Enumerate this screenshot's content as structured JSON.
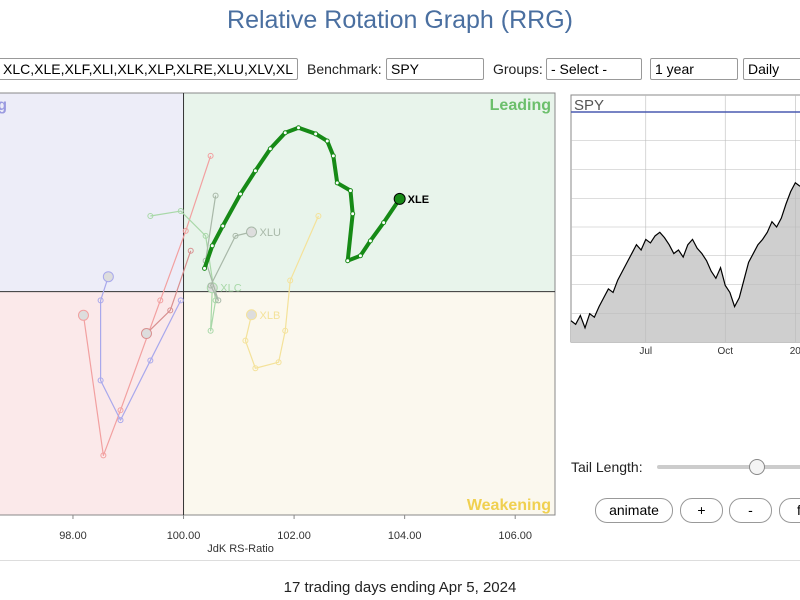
{
  "page": {
    "title": "Relative Rotation Graph (RRG)",
    "symbols": "XLC,XLE,XLF,XLI,XLK,XLP,XLRE,XLU,XLV,XL",
    "benchmark_label": "Benchmark:",
    "benchmark": "SPY",
    "groups_label": "Groups:",
    "groups": "- Select -",
    "period": "1 year",
    "frequency": "Daily",
    "tail_label": "Tail Length:",
    "buttons": [
      "animate",
      "+",
      "-",
      "fi"
    ],
    "footer": "17 trading days ending Apr 5, 2024"
  },
  "chart_data": [
    {
      "type": "rrg",
      "xlabel": "JdK RS-Ratio",
      "quadrants": {
        "top_left": "Lagging",
        "top_right": "Leading",
        "bottom_right": "Weakening"
      },
      "center": {
        "x": 100,
        "y": 100
      },
      "xlim": [
        96.68,
        106.72
      ],
      "ylim": [
        95.95,
        103.6
      ],
      "xticks": [
        {
          "value": 98,
          "label": "98.00"
        },
        {
          "value": 100,
          "label": "100.00"
        },
        {
          "value": 102,
          "label": "102.00"
        },
        {
          "value": 104,
          "label": "104.00"
        },
        {
          "value": 106,
          "label": "106.00"
        }
      ],
      "series": [
        {
          "color": "#f2a0a0",
          "x": [
            100.49,
            100.04,
            99.58,
            98.86,
            98.55,
            98.19
          ],
          "values": [
            102.46,
            101.1,
            99.84,
            97.85,
            97.03,
            99.57
          ]
        },
        {
          "color": "#a8a8ec",
          "x": [
            99.95,
            99.4,
            98.86,
            98.5,
            98.5,
            98.64
          ],
          "values": [
            99.84,
            98.75,
            97.67,
            98.39,
            99.84,
            100.27
          ]
        },
        {
          "color": "#d89090",
          "x": [
            100.13,
            99.76,
            99.33
          ],
          "values": [
            100.74,
            99.66,
            99.24
          ]
        },
        {
          "name": "XLC",
          "color": "#a8d8a8",
          "x": [
            99.4,
            99.95,
            100.4,
            100.58,
            100.49,
            100.52
          ],
          "values": [
            101.37,
            101.46,
            101.01,
            99.84,
            99.29,
            100.07
          ]
        },
        {
          "name": "XLU",
          "color": "#a8b8a8",
          "x": [
            100.58,
            100.4,
            100.63,
            100.49,
            100.94,
            101.23
          ],
          "values": [
            101.74,
            100.56,
            99.84,
            100.11,
            101.01,
            101.08
          ]
        },
        {
          "name": "XLB",
          "color": "#f4e29a",
          "x": [
            102.44,
            101.93,
            101.84,
            101.72,
            101.3,
            101.12,
            101.23
          ],
          "values": [
            101.37,
            100.2,
            99.29,
            98.72,
            98.61,
            99.11,
            99.58
          ]
        },
        {
          "name": "XLE",
          "color": "#168a16",
          "highlight": true,
          "x": [
            100.38,
            100.52,
            100.71,
            101.03,
            101.3,
            101.57,
            101.84,
            102.08,
            102.39,
            102.6,
            102.71,
            102.78,
            103.02,
            103.06,
            102.97,
            103.2,
            103.38,
            103.62,
            103.91
          ],
          "values": [
            100.42,
            100.83,
            101.19,
            101.77,
            102.19,
            102.59,
            102.88,
            102.97,
            102.86,
            102.73,
            102.46,
            101.97,
            101.83,
            101.41,
            100.56,
            100.65,
            100.92,
            101.25,
            101.68
          ]
        }
      ]
    },
    {
      "type": "area",
      "title": "SPY",
      "color": "#000000",
      "fill": "#cfcfcf",
      "xlim": [
        0,
        49
      ],
      "ylim": [
        400,
        530
      ],
      "xticks": [
        {
          "value": 16,
          "label": "Jul"
        },
        {
          "value": 33,
          "label": "Oct"
        },
        {
          "value": 48,
          "label": "20"
        }
      ],
      "values": [
        412,
        410,
        415,
        408,
        416,
        414,
        420,
        425,
        430,
        428,
        435,
        440,
        445,
        450,
        455,
        452,
        458,
        456,
        460,
        462,
        459,
        455,
        450,
        452,
        448,
        455,
        458,
        453,
        450,
        446,
        440,
        436,
        442,
        432,
        428,
        420,
        425,
        435,
        445,
        450,
        455,
        458,
        462,
        468,
        465,
        470,
        478,
        485,
        490,
        488
      ]
    }
  ]
}
